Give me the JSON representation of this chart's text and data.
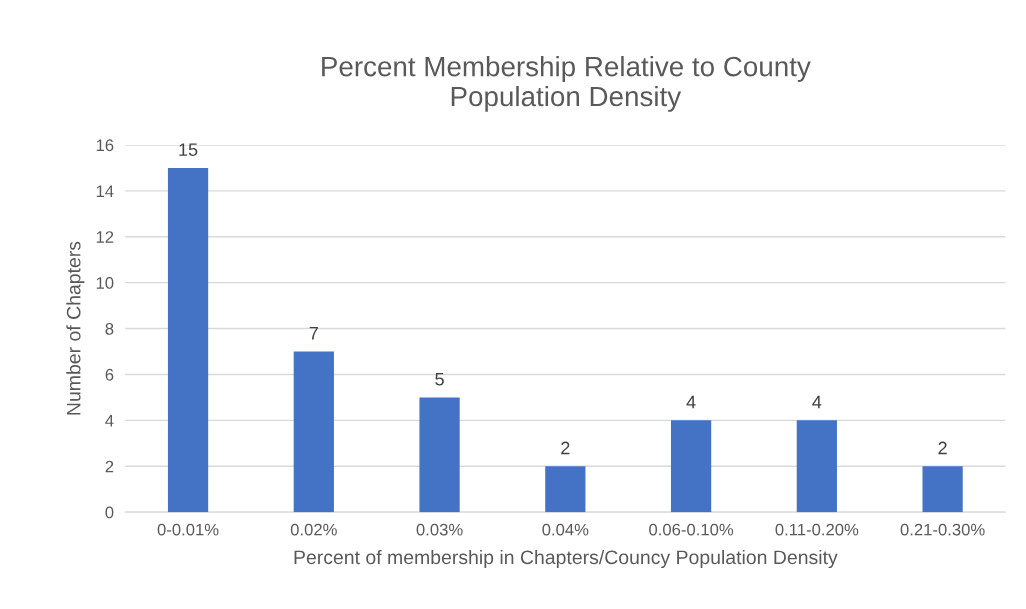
{
  "chart_data": {
    "type": "bar",
    "title": "Percent Membership Relative to County\nPopulation Density",
    "xlabel": "Percent of membership in Chapters/Councy Population Density",
    "ylabel": "Number of Chapters",
    "categories": [
      "0-0.01%",
      "0.02%",
      "0.03%",
      "0.04%",
      "0.06-0.10%",
      "0.11-0.20%",
      "0.21-0.30%"
    ],
    "values": [
      15,
      7,
      5,
      2,
      4,
      4,
      2
    ],
    "color": "#4472c4",
    "ylim": [
      0,
      16
    ],
    "yticks": [
      0,
      2,
      4,
      6,
      8,
      10,
      12,
      14,
      16
    ],
    "grid": "y",
    "data_labels": true
  }
}
